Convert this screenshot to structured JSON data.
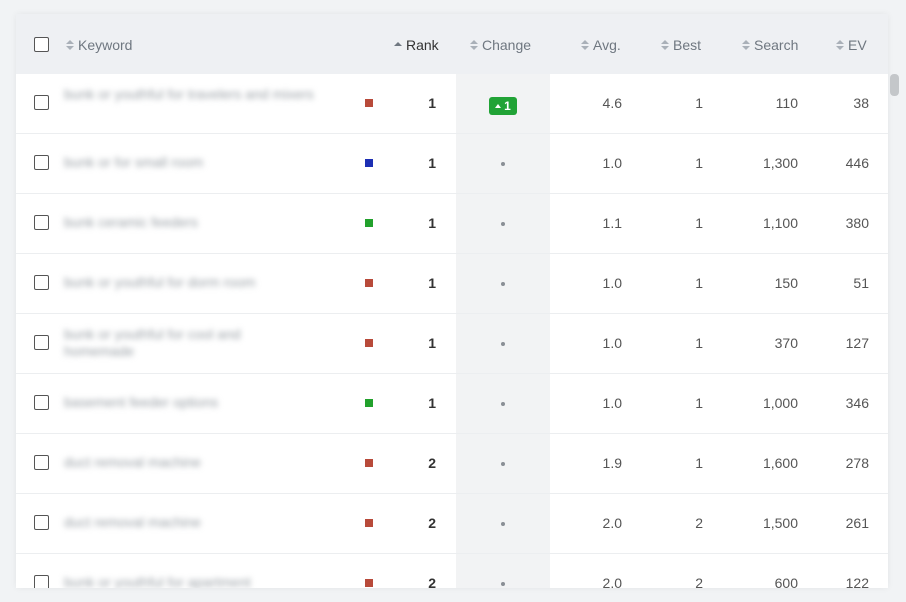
{
  "header": {
    "keyword": "Keyword",
    "rank": "Rank",
    "change": "Change",
    "avg": "Avg.",
    "best": "Best",
    "search": "Search",
    "ev": "EV"
  },
  "colors": {
    "red": "#b84a3a",
    "blue": "#1d2fb3",
    "green": "#22a12c",
    "badge": "#21a336"
  },
  "rows": [
    {
      "keyword": "bunk or youthful for travelers and mixers",
      "color": "red",
      "rank": "1",
      "change": "1",
      "avg": "4.6",
      "best": "1",
      "search": "110",
      "ev": "38"
    },
    {
      "keyword": "bunk or for small room",
      "color": "blue",
      "rank": "1",
      "change": "",
      "avg": "1.0",
      "best": "1",
      "search": "1,300",
      "ev": "446"
    },
    {
      "keyword": "bunk ceramic feeders",
      "color": "green",
      "rank": "1",
      "change": "",
      "avg": "1.1",
      "best": "1",
      "search": "1,100",
      "ev": "380"
    },
    {
      "keyword": "bunk or youthful for dorm room",
      "color": "red",
      "rank": "1",
      "change": "",
      "avg": "1.0",
      "best": "1",
      "search": "150",
      "ev": "51"
    },
    {
      "keyword": "bunk or youthful for cool and homemade",
      "color": "red",
      "rank": "1",
      "change": "",
      "avg": "1.0",
      "best": "1",
      "search": "370",
      "ev": "127"
    },
    {
      "keyword": "basement feeder options",
      "color": "green",
      "rank": "1",
      "change": "",
      "avg": "1.0",
      "best": "1",
      "search": "1,000",
      "ev": "346"
    },
    {
      "keyword": "duct removal machine",
      "color": "red",
      "rank": "2",
      "change": "",
      "avg": "1.9",
      "best": "1",
      "search": "1,600",
      "ev": "278"
    },
    {
      "keyword": "duct removal machine",
      "color": "red",
      "rank": "2",
      "change": "",
      "avg": "2.0",
      "best": "2",
      "search": "1,500",
      "ev": "261"
    },
    {
      "keyword": "bunk or youthful for apartment",
      "color": "red",
      "rank": "2",
      "change": "",
      "avg": "2.0",
      "best": "2",
      "search": "600",
      "ev": "122"
    }
  ]
}
